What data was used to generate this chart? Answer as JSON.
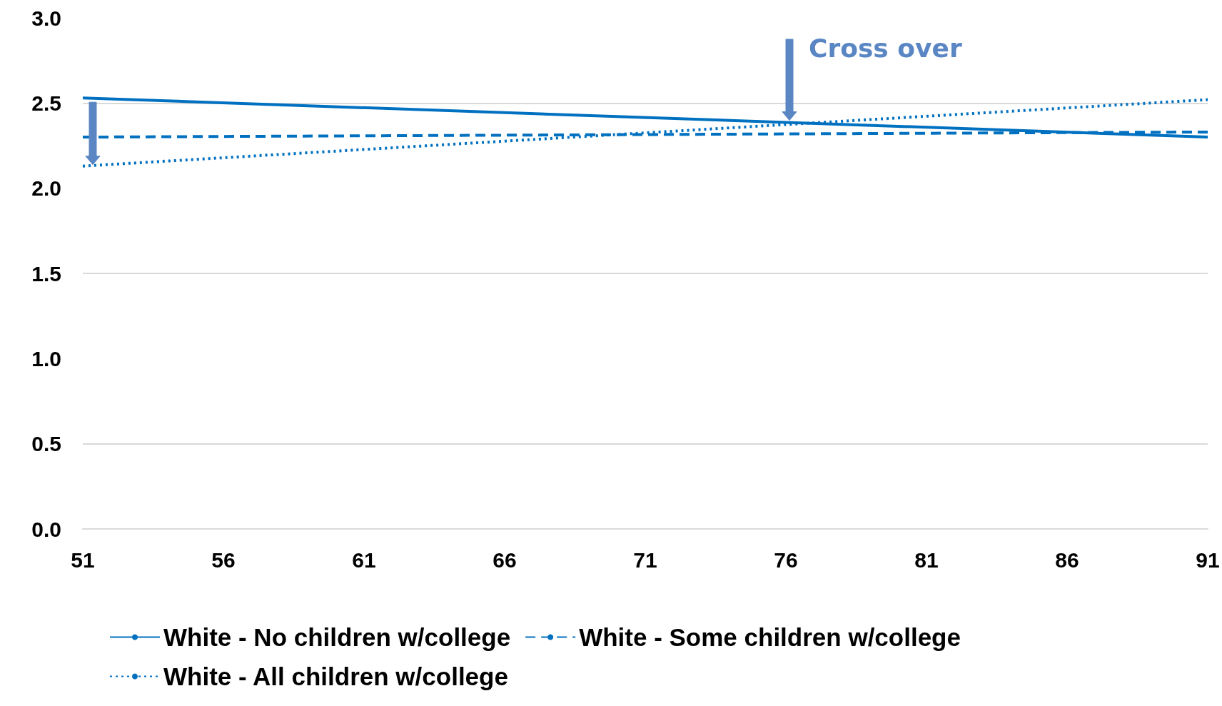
{
  "chart_data": {
    "type": "line",
    "x": [
      51,
      91
    ],
    "series": [
      {
        "name": "White - No children w/college",
        "color": "#0070c0",
        "values": [
          2.53,
          2.3
        ],
        "line_style": "solid"
      },
      {
        "name": "White - Some children w/college",
        "color": "#0070c0",
        "values": [
          2.3,
          2.33
        ],
        "line_style": "dashed"
      },
      {
        "name": "White - All children w/college",
        "color": "#0070c0",
        "values": [
          2.13,
          2.52
        ],
        "line_style": "dotted"
      }
    ],
    "xlim": [
      51,
      91
    ],
    "xticks": [
      51,
      56,
      61,
      66,
      71,
      76,
      81,
      86,
      91
    ],
    "ylim": [
      0,
      3
    ],
    "yticks": [
      {
        "value": 0,
        "label": "0.0"
      },
      0.5,
      {
        "value": 1,
        "label": "1.0"
      },
      1.5,
      {
        "value": 2,
        "label": "2.0"
      },
      2.5,
      {
        "value": 3,
        "label": "3.0"
      }
    ],
    "grid": "y",
    "legend": "bottom",
    "marker": "none",
    "annotations": [
      {
        "text": "Cross over",
        "x": 76,
        "y": 2.39
      }
    ]
  }
}
